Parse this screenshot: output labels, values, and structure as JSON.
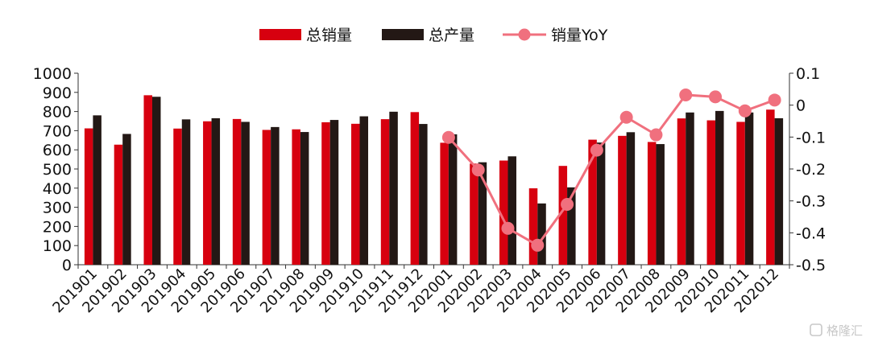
{
  "chart_data": {
    "type": "bar",
    "categories": [
      "201901",
      "201902",
      "201903",
      "201904",
      "201905",
      "201906",
      "201907",
      "201908",
      "201909",
      "201910",
      "201911",
      "201912",
      "202001",
      "202002",
      "202003",
      "202004",
      "202005",
      "202006",
      "202007",
      "202008",
      "202009",
      "202010",
      "202011",
      "202012"
    ],
    "series": [
      {
        "name": "总销量",
        "type": "bar",
        "axis": "left",
        "color": "#d7000f",
        "values": [
          712,
          627,
          885,
          711,
          749,
          761,
          704,
          707,
          744,
          736,
          760,
          797,
          637,
          528,
          544,
          399,
          516,
          653,
          673,
          641,
          764,
          754,
          746,
          810
        ]
      },
      {
        "name": "总产量",
        "type": "bar",
        "axis": "left",
        "color": "#231815",
        "values": [
          780,
          683,
          877,
          759,
          765,
          746,
          719,
          693,
          756,
          775,
          799,
          735,
          681,
          535,
          566,
          320,
          404,
          638,
          692,
          630,
          795,
          803,
          795,
          765
        ]
      },
      {
        "name": "销量YoY",
        "type": "line",
        "axis": "right",
        "color": "#f0707e",
        "values": [
          null,
          null,
          null,
          null,
          null,
          null,
          null,
          null,
          null,
          null,
          null,
          null,
          -0.101,
          -0.203,
          -0.386,
          -0.439,
          -0.311,
          -0.141,
          -0.038,
          -0.093,
          0.032,
          0.026,
          -0.018,
          0.016
        ]
      }
    ],
    "y_left": {
      "min": 0,
      "max": 1000,
      "step": 100
    },
    "y_right": {
      "min": -0.5,
      "max": 0.1,
      "step": 0.1,
      "tick_labels": [
        "-0.5",
        "-0.4",
        "-0.3",
        "-0.2",
        "-0.1",
        "0",
        "0.1"
      ]
    },
    "legend": {
      "position": "top-center"
    },
    "grid": false
  },
  "watermark": "格隆汇"
}
